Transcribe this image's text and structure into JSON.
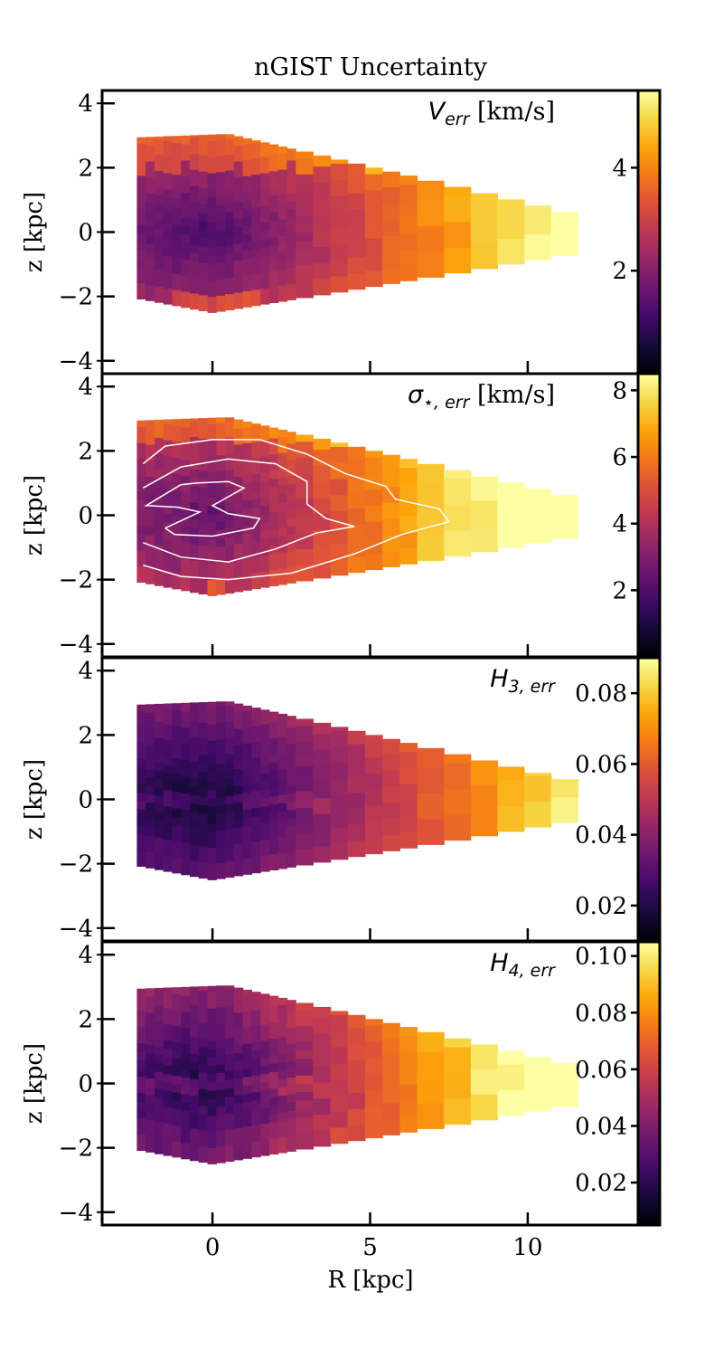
{
  "chart_data": {
    "type": "heatmap",
    "title": "nGIST Uncertainty",
    "xlabel": "R [kpc]",
    "ylabel": "z [kpc]",
    "xlim": [
      -3.5,
      13.5
    ],
    "x_ticks": [
      "0",
      "5",
      "10"
    ],
    "ylim": [
      -4.4,
      4.4
    ],
    "y_ticks": [
      "−4",
      "−2",
      "0",
      "2",
      "4"
    ],
    "colormap": "inferno",
    "panels": [
      {
        "label": "V_err [km/s]",
        "label_main": "V",
        "label_sub": "err",
        "label_unit": " [km/s]",
        "clim": [
          0,
          5.5
        ],
        "cbar_ticks": [
          "2",
          "4"
        ],
        "contours": false
      },
      {
        "label": "σ⋆,err [km/s]",
        "label_main": "σ",
        "label_sub": "⋆, err",
        "label_unit": " [km/s]",
        "clim": [
          0,
          8.5
        ],
        "cbar_ticks": [
          "2",
          "4",
          "6",
          "8"
        ],
        "contours": true
      },
      {
        "label": "H3,err",
        "label_main": "H",
        "label_sub": "3, err",
        "label_unit": "",
        "clim": [
          0.01,
          0.09
        ],
        "cbar_ticks": [
          "0.02",
          "0.04",
          "0.06",
          "0.08"
        ],
        "contours": false
      },
      {
        "label": "H4,err",
        "label_main": "H",
        "label_sub": "4, err",
        "label_unit": "",
        "clim": [
          0.005,
          0.105
        ],
        "cbar_ticks": [
          "0.02",
          "0.04",
          "0.06",
          "0.08",
          "0.10"
        ],
        "contours": false
      }
    ]
  }
}
